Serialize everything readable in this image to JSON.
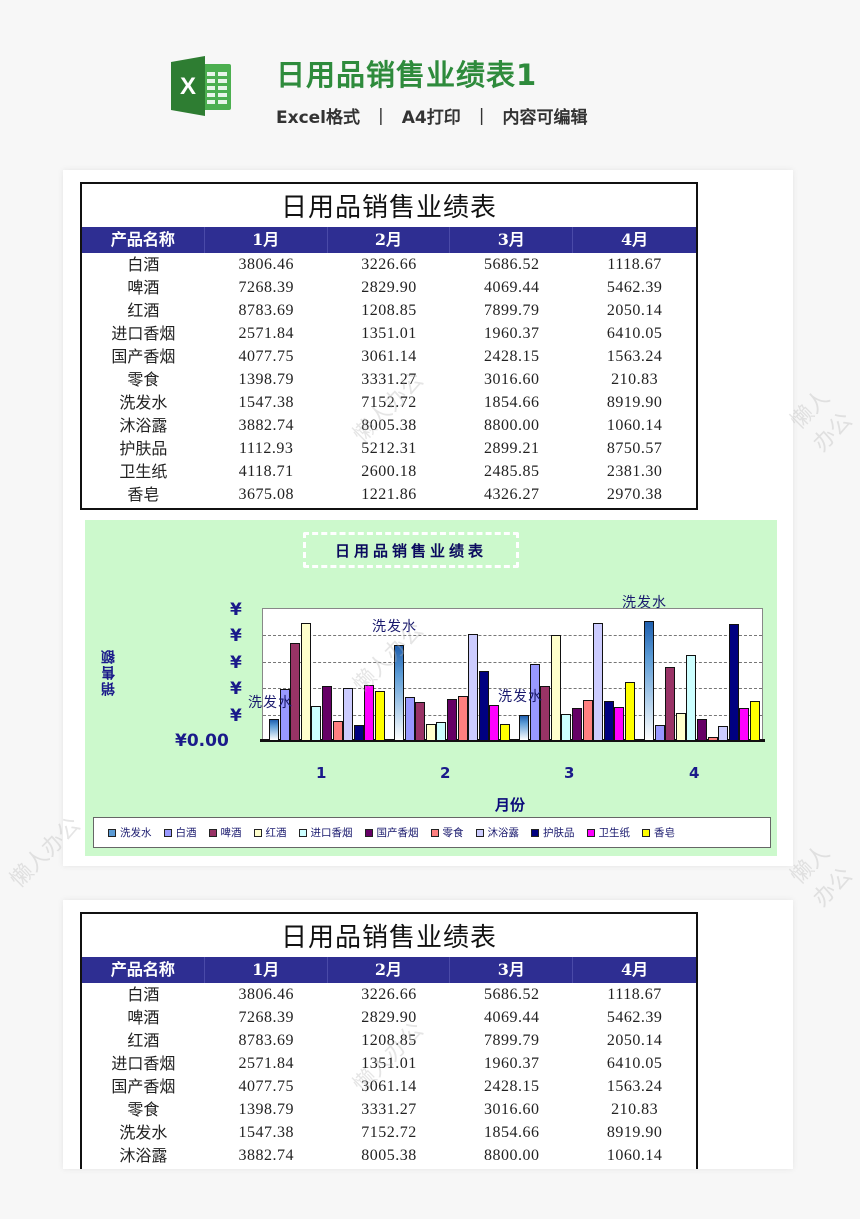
{
  "header": {
    "title": "日用品销售业绩表1",
    "tags": [
      "Excel格式",
      "A4打印",
      "内容可编辑"
    ],
    "separator": "|",
    "icon": "excel-icon",
    "accent_color": "#2e8b3c"
  },
  "sheet": {
    "title": "日用品销售业绩表",
    "columns": [
      "产品名称",
      "1月",
      "2月",
      "3月",
      "4月"
    ],
    "header_bg": "#2e2e92",
    "rows": [
      [
        "白酒",
        "3806.46",
        "3226.66",
        "5686.52",
        "1118.67"
      ],
      [
        "啤酒",
        "7268.39",
        "2829.90",
        "4069.44",
        "5462.39"
      ],
      [
        "红酒",
        "8783.69",
        "1208.85",
        "7899.79",
        "2050.14"
      ],
      [
        "进口香烟",
        "2571.84",
        "1351.01",
        "1960.37",
        "6410.05"
      ],
      [
        "国产香烟",
        "4077.75",
        "3061.14",
        "2428.15",
        "1563.24"
      ],
      [
        "零食",
        "1398.79",
        "3331.27",
        "3016.60",
        "210.83"
      ],
      [
        "洗发水",
        "1547.38",
        "7152.72",
        "1854.66",
        "8919.90"
      ],
      [
        "沐浴露",
        "3882.74",
        "8005.38",
        "8800.00",
        "1060.14"
      ],
      [
        "护肤品",
        "1112.93",
        "5212.31",
        "2899.21",
        "8750.57"
      ],
      [
        "卫生纸",
        "4118.71",
        "2600.18",
        "2485.85",
        "2381.30"
      ],
      [
        "香皂",
        "3675.08",
        "1221.86",
        "4326.27",
        "2970.38"
      ]
    ]
  },
  "chart_data": {
    "type": "bar",
    "title": "日用品销售业绩表",
    "xlabel": "月份",
    "ylabel": "销售额",
    "categories": [
      "1",
      "2",
      "3",
      "4"
    ],
    "ylim": [
      0,
      10000
    ],
    "ytick_labels": [
      "¥",
      "¥",
      "¥",
      "¥",
      "¥",
      "¥0.00"
    ],
    "grid": true,
    "legend_position": "bottom",
    "background": "#ccf9cc",
    "annotations": [
      {
        "text": "洗发水",
        "category": "1"
      },
      {
        "text": "洗发水",
        "category": "2"
      },
      {
        "text": "洗发水",
        "category": "3"
      },
      {
        "text": "洗发水",
        "category": "4"
      }
    ],
    "series": [
      {
        "name": "洗发水",
        "color": "#5b9bd5",
        "values": [
          1547.38,
          7152.72,
          1854.66,
          8919.9
        ]
      },
      {
        "name": "白酒",
        "color": "#9999ff",
        "values": [
          3806.46,
          3226.66,
          5686.52,
          1118.67
        ]
      },
      {
        "name": "啤酒",
        "color": "#993366",
        "values": [
          7268.39,
          2829.9,
          4069.44,
          5462.39
        ]
      },
      {
        "name": "红酒",
        "color": "#ffffcc",
        "values": [
          8783.69,
          1208.85,
          7899.79,
          2050.14
        ]
      },
      {
        "name": "进口香烟",
        "color": "#ccffff",
        "values": [
          2571.84,
          1351.01,
          1960.37,
          6410.05
        ]
      },
      {
        "name": "国产香烟",
        "color": "#660066",
        "values": [
          4077.75,
          3061.14,
          2428.15,
          1563.24
        ]
      },
      {
        "name": "零食",
        "color": "#ff8080",
        "values": [
          1398.79,
          3331.27,
          3016.6,
          210.83
        ]
      },
      {
        "name": "沐浴露",
        "color": "#ccccff",
        "values": [
          3882.74,
          8005.38,
          8800.0,
          1060.14
        ]
      },
      {
        "name": "护肤品",
        "color": "#000080",
        "values": [
          1112.93,
          5212.31,
          2899.21,
          8750.57
        ]
      },
      {
        "name": "卫生纸",
        "color": "#ff00ff",
        "values": [
          4118.71,
          2600.18,
          2485.85,
          2381.3
        ]
      },
      {
        "name": "香皂",
        "color": "#ffff00",
        "values": [
          3675.08,
          1221.86,
          4326.27,
          2970.38
        ]
      }
    ]
  },
  "sheet2": {
    "title": "日用品销售业绩表",
    "columns": [
      "产品名称",
      "1月",
      "2月",
      "3月",
      "4月"
    ],
    "rows": [
      [
        "白酒",
        "3806.46",
        "3226.66",
        "5686.52",
        "1118.67"
      ],
      [
        "啤酒",
        "7268.39",
        "2829.90",
        "4069.44",
        "5462.39"
      ],
      [
        "红酒",
        "8783.69",
        "1208.85",
        "7899.79",
        "2050.14"
      ],
      [
        "进口香烟",
        "2571.84",
        "1351.01",
        "1960.37",
        "6410.05"
      ],
      [
        "国产香烟",
        "4077.75",
        "3061.14",
        "2428.15",
        "1563.24"
      ],
      [
        "零食",
        "1398.79",
        "3331.27",
        "3016.60",
        "210.83"
      ],
      [
        "洗发水",
        "1547.38",
        "7152.72",
        "1854.66",
        "8919.90"
      ],
      [
        "沐浴露",
        "3882.74",
        "8005.38",
        "8800.00",
        "1060.14"
      ]
    ]
  },
  "watermark": "懒人办公"
}
